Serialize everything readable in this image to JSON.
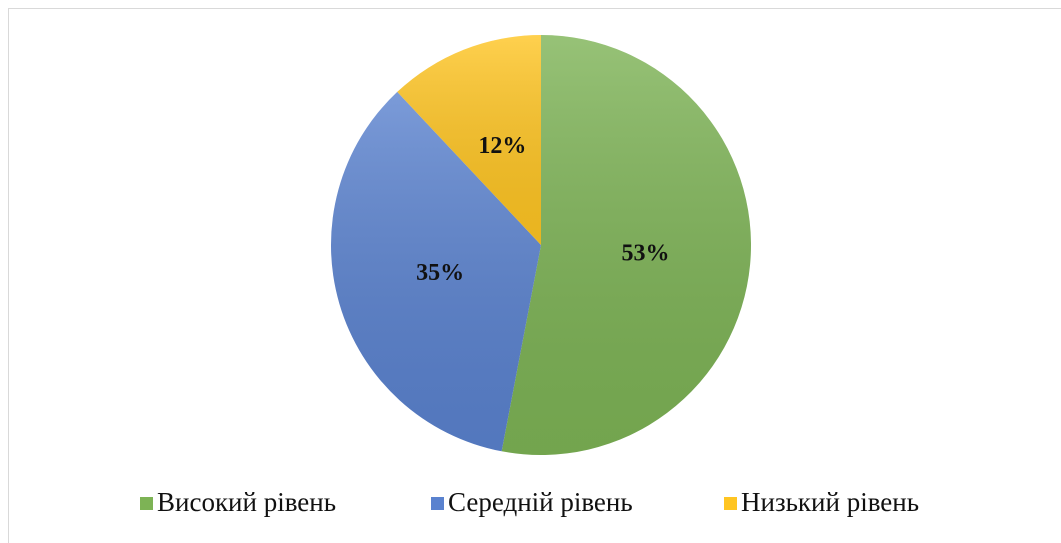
{
  "chart_data": {
    "type": "pie",
    "categories": [
      "Високий рівень",
      "Середній рівень",
      "Низький рівень"
    ],
    "values": [
      53,
      35,
      12
    ],
    "value_labels": [
      "53%",
      "35%",
      "12%"
    ],
    "colors": [
      "#7db355",
      "#5a82cf",
      "#ffc522"
    ],
    "legend": "bottom"
  }
}
